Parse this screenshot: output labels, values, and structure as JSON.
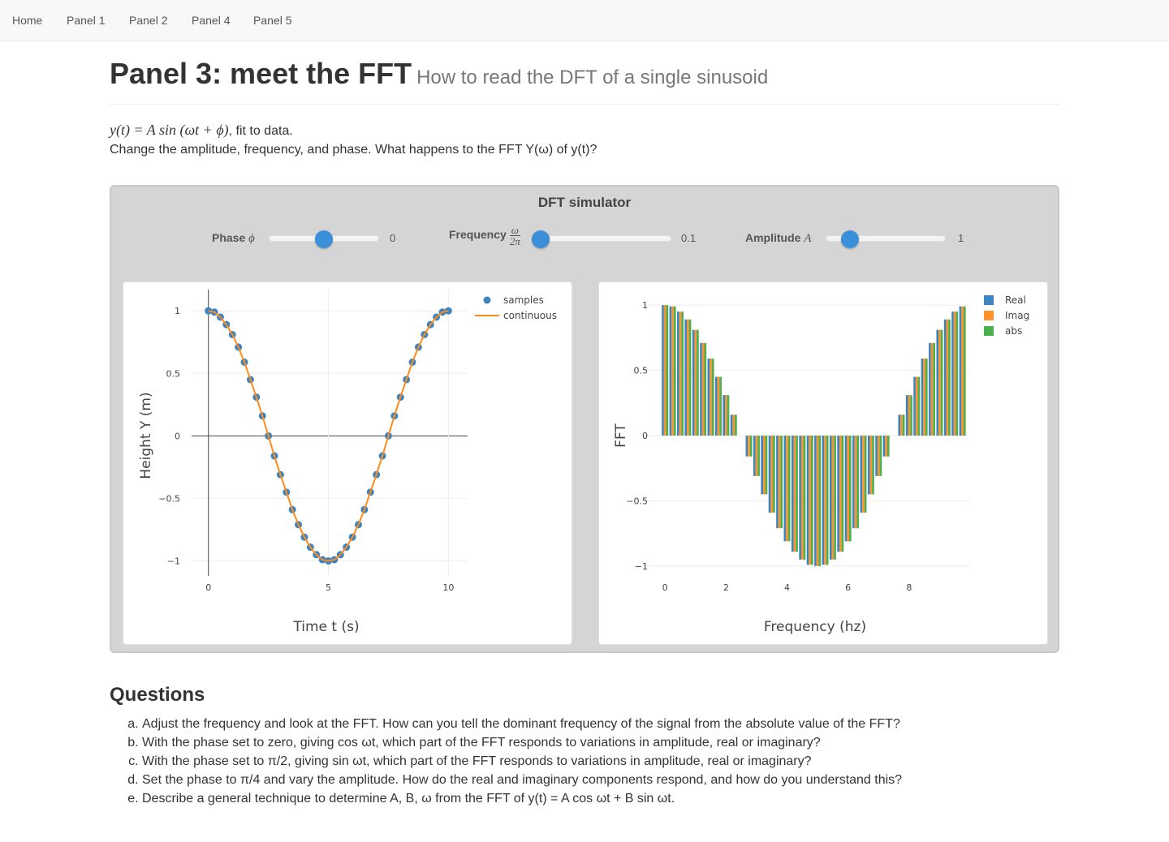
{
  "nav": [
    "Home",
    "Panel 1",
    "Panel 2",
    "Panel 4",
    "Panel 5"
  ],
  "header": {
    "title": "Panel 3: meet the FFT",
    "subtitle": "How to read the DFT of a single sinusoid"
  },
  "intro": {
    "formula": "y(t) = A sin (ωt + ϕ)",
    "formula_tail": ", fit to data.",
    "line2": "Change the amplitude, frequency, and phase. What happens to the FFT Y(ω) of y(t)?"
  },
  "simulator": {
    "title": "DFT simulator",
    "sliders": [
      {
        "label": "Phase",
        "symbol": "ϕ",
        "value": 0,
        "range": [
          -3.14,
          3.14
        ]
      },
      {
        "label": "Frequency",
        "symbol_num": "ω",
        "symbol_den": "2π",
        "value": 0.1,
        "range": [
          0.1,
          2
        ]
      },
      {
        "label": "Amplitude",
        "symbol": "A",
        "value": 1,
        "range": [
          0,
          5
        ]
      }
    ]
  },
  "chart_data": [
    {
      "type": "line",
      "xlabel": "Time t (s)",
      "ylabel": "Height Y (m)",
      "xlim": [
        -0.7,
        10.8
      ],
      "ylim": [
        -1.12,
        1.17
      ],
      "xticks": [
        0,
        5,
        10
      ],
      "yticks": [
        {
          "value": -1,
          "label": "−1"
        },
        {
          "value": -0.5,
          "label": "−0.5"
        },
        0,
        0.5,
        1
      ],
      "grid": true,
      "legend": "top-right",
      "series": [
        {
          "name": "samples",
          "mode": "markers",
          "color": "#3d85c1",
          "x": [
            0,
            0.25,
            0.5,
            0.75,
            1,
            1.25,
            1.5,
            1.75,
            2,
            2.25,
            2.5,
            2.75,
            3,
            3.25,
            3.5,
            3.75,
            4,
            4.25,
            4.5,
            4.75,
            5,
            5.25,
            5.5,
            5.75,
            6,
            6.25,
            6.5,
            6.75,
            7,
            7.25,
            7.5,
            7.75,
            8,
            8.25,
            8.5,
            8.75,
            9,
            9.25,
            9.5,
            9.75,
            10
          ],
          "values": [
            1,
            0.99,
            0.95,
            0.89,
            0.81,
            0.71,
            0.59,
            0.45,
            0.31,
            0.16,
            0,
            -0.16,
            -0.31,
            -0.45,
            -0.59,
            -0.71,
            -0.81,
            -0.89,
            -0.95,
            -0.99,
            -1,
            -0.99,
            -0.95,
            -0.89,
            -0.81,
            -0.71,
            -0.59,
            -0.45,
            -0.31,
            -0.16,
            0,
            0.16,
            0.31,
            0.45,
            0.59,
            0.71,
            0.81,
            0.89,
            0.95,
            0.99,
            1
          ]
        },
        {
          "name": "continuous",
          "mode": "lines",
          "color": "#ff8c1a",
          "x": [
            0,
            0.25,
            0.5,
            0.75,
            1,
            1.25,
            1.5,
            1.75,
            2,
            2.25,
            2.5,
            2.75,
            3,
            3.25,
            3.5,
            3.75,
            4,
            4.25,
            4.5,
            4.75,
            5,
            5.25,
            5.5,
            5.75,
            6,
            6.25,
            6.5,
            6.75,
            7,
            7.25,
            7.5,
            7.75,
            8,
            8.25,
            8.5,
            8.75,
            9,
            9.25,
            9.5,
            9.75,
            10
          ],
          "values": [
            1,
            0.99,
            0.95,
            0.89,
            0.81,
            0.71,
            0.59,
            0.45,
            0.31,
            0.16,
            0,
            -0.16,
            -0.31,
            -0.45,
            -0.59,
            -0.71,
            -0.81,
            -0.89,
            -0.95,
            -0.99,
            -1,
            -0.99,
            -0.95,
            -0.89,
            -0.81,
            -0.71,
            -0.59,
            -0.45,
            -0.31,
            -0.16,
            0,
            0.16,
            0.31,
            0.45,
            0.59,
            0.71,
            0.81,
            0.89,
            0.95,
            0.99,
            1
          ]
        }
      ]
    },
    {
      "type": "bar",
      "xlabel": "Frequency (hz)",
      "ylabel": "FFT",
      "xlim": [
        -0.75,
        10
      ],
      "ylim": [
        -1.15,
        1.1
      ],
      "xticks": [
        0,
        2,
        4,
        6,
        8
      ],
      "yticks": [
        {
          "value": -1,
          "label": "−1"
        },
        {
          "value": -0.5,
          "label": "−0.5"
        },
        0,
        0.5,
        1
      ],
      "grid": true,
      "legend": "top-right",
      "x": [
        0,
        0.25,
        0.5,
        0.75,
        1,
        1.25,
        1.5,
        1.75,
        2,
        2.25,
        2.5,
        2.75,
        3,
        3.25,
        3.5,
        3.75,
        4,
        4.25,
        4.5,
        4.75,
        5,
        5.25,
        5.5,
        5.75,
        6,
        6.25,
        6.5,
        6.75,
        7,
        7.25,
        7.5,
        7.75,
        8,
        8.25,
        8.5,
        8.75,
        9,
        9.25,
        9.5,
        9.75
      ],
      "series": [
        {
          "name": "Real",
          "color": "#3d85c1",
          "values": [
            1,
            0.99,
            0.95,
            0.89,
            0.81,
            0.71,
            0.59,
            0.45,
            0.31,
            0.16,
            0,
            -0.16,
            -0.31,
            -0.45,
            -0.59,
            -0.71,
            -0.81,
            -0.89,
            -0.95,
            -0.99,
            -1,
            -0.99,
            -0.95,
            -0.89,
            -0.81,
            -0.71,
            -0.59,
            -0.45,
            -0.31,
            -0.16,
            0,
            0.16,
            0.31,
            0.45,
            0.59,
            0.71,
            0.81,
            0.89,
            0.95,
            0.99
          ]
        },
        {
          "name": "Imag",
          "color": "#ff922b",
          "values": [
            1,
            0.99,
            0.95,
            0.89,
            0.81,
            0.71,
            0.59,
            0.45,
            0.31,
            0.16,
            0,
            -0.16,
            -0.31,
            -0.45,
            -0.59,
            -0.71,
            -0.81,
            -0.89,
            -0.95,
            -0.99,
            -1,
            -0.99,
            -0.95,
            -0.89,
            -0.81,
            -0.71,
            -0.59,
            -0.45,
            -0.31,
            -0.16,
            0,
            0.16,
            0.31,
            0.45,
            0.59,
            0.71,
            0.81,
            0.89,
            0.95,
            0.99
          ]
        },
        {
          "name": "abs",
          "color": "#4caf50",
          "values": [
            1,
            0.99,
            0.95,
            0.89,
            0.81,
            0.71,
            0.59,
            0.45,
            0.31,
            0.16,
            0,
            -0.16,
            -0.31,
            -0.45,
            -0.59,
            -0.71,
            -0.81,
            -0.89,
            -0.95,
            -0.99,
            -1,
            -0.99,
            -0.95,
            -0.89,
            -0.81,
            -0.71,
            -0.59,
            -0.45,
            -0.31,
            -0.16,
            0,
            0.16,
            0.31,
            0.45,
            0.59,
            0.71,
            0.81,
            0.89,
            0.95,
            0.99
          ]
        }
      ]
    }
  ],
  "questions": {
    "title": "Questions",
    "items": [
      "Adjust the frequency and look at the FFT. How can you tell the dominant frequency of the signal from the absolute value of the FFT?",
      "With the phase set to zero, giving cos ωt, which part of the FFT responds to variations in amplitude, real or imaginary?",
      "With the phase set to π/2, giving sin ωt, which part of the FFT responds to variations in amplitude, real or imaginary?",
      "Set the phase to π/4 and vary the amplitude. How do the real and imaginary components respond, and how do you understand this?",
      "Describe a general technique to determine A, B, ω from the FFT of y(t) = A cos ωt + B sin ωt."
    ]
  }
}
